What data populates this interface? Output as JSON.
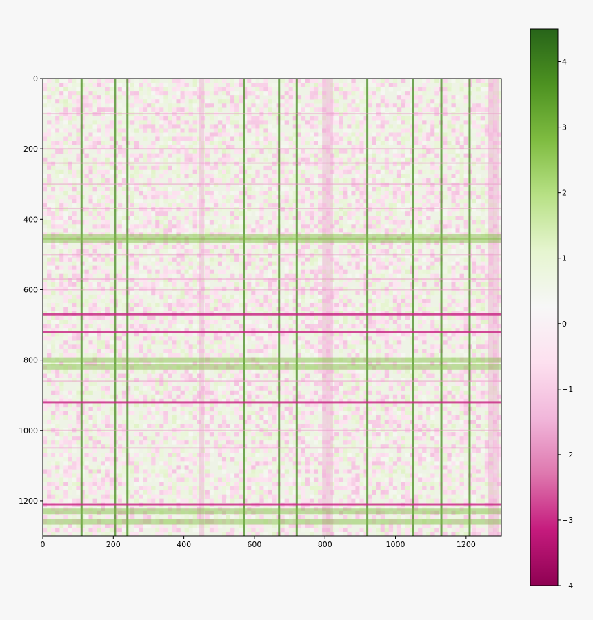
{
  "chart_data": {
    "type": "heatmap",
    "title": "",
    "xlabel": "",
    "ylabel": "",
    "xlim": [
      0,
      1300
    ],
    "ylim": [
      1300,
      0
    ],
    "x_ticks": [
      "0",
      "200",
      "400",
      "600",
      "800",
      "1000",
      "1200"
    ],
    "y_ticks": [
      "0",
      "200",
      "400",
      "600",
      "800",
      "1000",
      "1200"
    ],
    "colorbar": {
      "range": [
        -4,
        4.5
      ],
      "ticks": [
        "−4",
        "−3",
        "−2",
        "−1",
        "0",
        "1",
        "2",
        "3",
        "4"
      ],
      "colormap": "PiYG",
      "colors": [
        "#8e0152",
        "#c51b7d",
        "#de77ae",
        "#f1b6da",
        "#fde0ef",
        "#f7f7f7",
        "#e6f5d0",
        "#b8e186",
        "#7fbc41",
        "#4d9221",
        "#276419"
      ]
    },
    "dark_pink_rows": [
      670,
      720,
      920,
      1210
    ],
    "pink_rows": [
      100,
      200,
      240,
      300,
      370,
      500,
      570,
      600,
      860,
      1000,
      1050
    ],
    "green_rows": [
      450,
      460,
      800,
      820,
      1230,
      1260
    ],
    "dark_green_columns": [
      110,
      205,
      240,
      570,
      670,
      720,
      920,
      1050,
      1130,
      1210
    ],
    "pink_columns": [
      450,
      800,
      815,
      1270,
      1285
    ],
    "grid": false
  }
}
